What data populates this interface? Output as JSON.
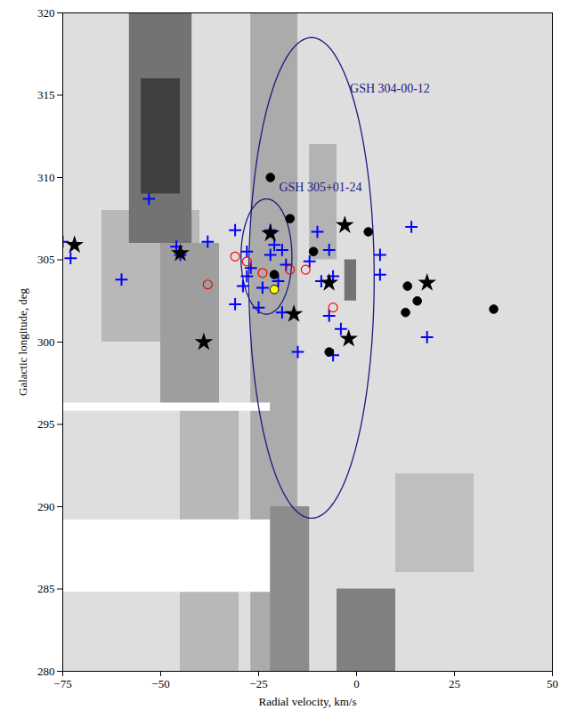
{
  "chart_data": {
    "type": "scatter",
    "xlabel": "Radial velocity, km/s",
    "ylabel": "Galactic longitude, deg",
    "xlim": [
      -75,
      50
    ],
    "ylim": [
      280,
      320
    ],
    "xticks": [
      -75,
      -50,
      -25,
      0,
      25,
      50
    ],
    "yticks": [
      280,
      285,
      290,
      295,
      300,
      305,
      310,
      315,
      320
    ],
    "intensity_lim": [
      0,
      1
    ],
    "emission": [
      {
        "v1": -75,
        "v2": 50,
        "l1": 280,
        "l2": 320,
        "intensity": 0.13
      },
      {
        "v1": -65,
        "v2": -40,
        "l1": 300,
        "l2": 308,
        "intensity": 0.28
      },
      {
        "v1": -58,
        "v2": -42,
        "l1": 306,
        "l2": 320,
        "intensity": 0.55
      },
      {
        "v1": -55,
        "v2": -45,
        "l1": 309,
        "l2": 316,
        "intensity": 0.75
      },
      {
        "v1": -50,
        "v2": -35,
        "l1": 296,
        "l2": 306,
        "intensity": 0.38
      },
      {
        "v1": -45,
        "v2": -30,
        "l1": 280,
        "l2": 296,
        "intensity": 0.28
      },
      {
        "v1": -27,
        "v2": -15,
        "l1": 280,
        "l2": 320,
        "intensity": 0.33
      },
      {
        "v1": -22,
        "v2": -12,
        "l1": 280,
        "l2": 290,
        "intensity": 0.45
      },
      {
        "v1": -12,
        "v2": -5,
        "l1": 305,
        "l2": 312,
        "intensity": 0.3
      },
      {
        "v1": -3,
        "v2": 0,
        "l1": 302.5,
        "l2": 305,
        "intensity": 0.55
      },
      {
        "v1": -5,
        "v2": 10,
        "l1": 280,
        "l2": 285,
        "intensity": 0.5
      },
      {
        "v1": 10,
        "v2": 30,
        "l1": 286,
        "l2": 292,
        "intensity": 0.25
      },
      {
        "v1": -75,
        "v2": -22,
        "l1": 295.8,
        "l2": 296.3,
        "intensity": 0
      },
      {
        "v1": -75,
        "v2": -22,
        "l1": 284.8,
        "l2": 289.2,
        "intensity": 0
      }
    ],
    "shells": [
      {
        "name": "GSH 304-00-12",
        "center_v": -11.5,
        "center_l": 303.9,
        "half_v": 16,
        "half_l": 14.6,
        "label_v": -1.7,
        "label_l": 315.4,
        "color": "#1a1a80"
      },
      {
        "name": "GSH 305+01-24",
        "center_v": -23,
        "center_l": 305.2,
        "half_v": 6.5,
        "half_l": 3.5,
        "label_v": -19.8,
        "label_l": 309.4,
        "color": "#1a1a80"
      }
    ],
    "series": [
      {
        "marker": "plus",
        "color": "#0000ff",
        "x": [
          -75,
          -73,
          -53,
          -46,
          -45,
          -38,
          -60,
          -31,
          -28,
          -27,
          -28,
          -29,
          -31,
          -25,
          -22,
          -21,
          -19,
          -20,
          -18,
          -19,
          -15,
          -12,
          -10,
          -7,
          -6,
          -9,
          -7,
          -4,
          -6,
          6,
          6,
          14,
          18,
          -24,
          -22
        ],
        "y": [
          306.1,
          305.1,
          308.7,
          305.8,
          305.3,
          306.1,
          303.8,
          306.8,
          305.5,
          304.5,
          304.0,
          303.4,
          302.3,
          302.1,
          306.8,
          305.9,
          305.6,
          303.7,
          304.7,
          301.8,
          299.4,
          304.9,
          306.7,
          305.6,
          304.0,
          303.7,
          301.6,
          300.8,
          299.2,
          305.3,
          304.1,
          307.0,
          300.3,
          303.3,
          305.3
        ]
      },
      {
        "marker": "circle_open",
        "color": "#ff0000",
        "x": [
          -38,
          -31,
          -28,
          -24,
          -17,
          -13,
          -6
        ],
        "y": [
          303.5,
          305.2,
          304.9,
          304.2,
          304.4,
          304.4,
          302.1
        ]
      },
      {
        "marker": "star",
        "color": "#000000",
        "x": [
          -72,
          -45,
          -22,
          -3,
          -7,
          18,
          -16,
          -39,
          -2
        ],
        "y": [
          305.9,
          305.4,
          306.6,
          307.1,
          303.6,
          303.6,
          301.7,
          300.0,
          300.2
        ]
      },
      {
        "marker": "circle",
        "color": "#000000",
        "x": [
          -22,
          -17,
          -11,
          3,
          -21,
          -7,
          13,
          12.5,
          15.5,
          35
        ],
        "y": [
          310.0,
          307.5,
          305.5,
          306.7,
          304.1,
          299.4,
          303.4,
          301.8,
          302.5,
          302.0
        ]
      },
      {
        "marker": "circle",
        "color": "#ffff00",
        "x": [
          -21
        ],
        "y": [
          303.2
        ]
      }
    ]
  }
}
